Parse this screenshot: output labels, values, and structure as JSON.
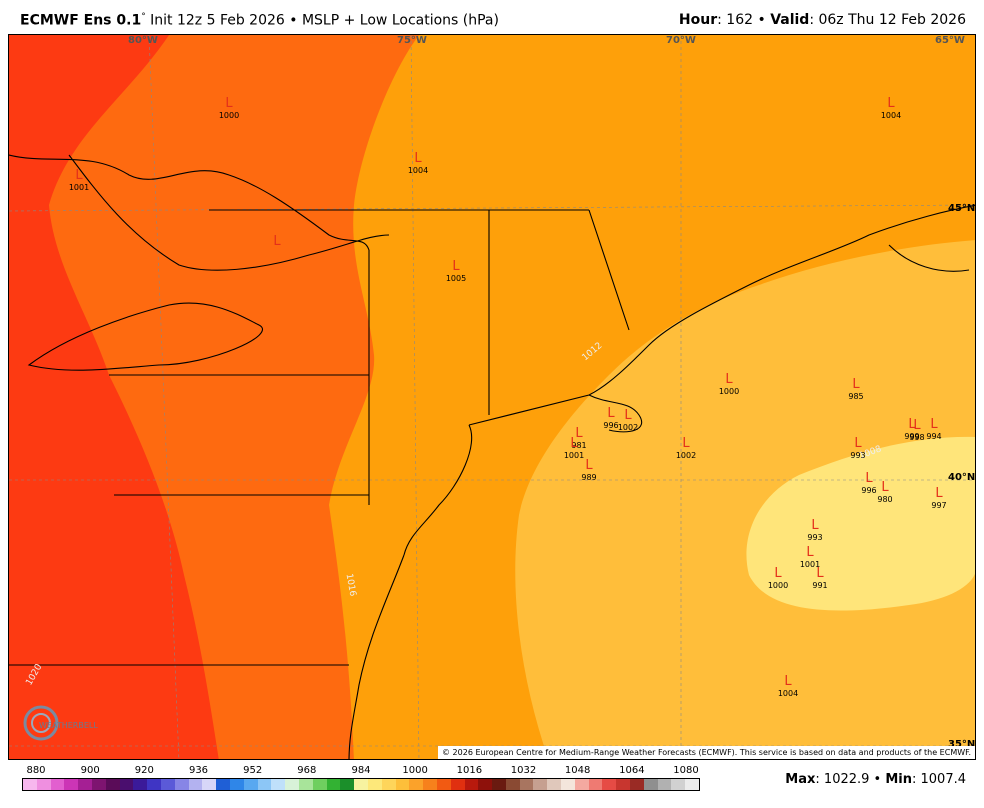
{
  "header": {
    "model": "ECMWF Ens 0.1",
    "degree": "°",
    "init": " Init 12z 5 Feb 2026 • MSLP + Low Locations (hPa)",
    "hour_label": "Hour",
    "hour_value": ": 162 • ",
    "valid_label": "Valid",
    "valid_value": ": 06z Thu 12 Feb 2026"
  },
  "longitudes": [
    "80°W",
    "75°W",
    "70°W",
    "65°W"
  ],
  "latitudes": [
    "45°N",
    "40°N",
    "35°N"
  ],
  "contour_labels": [
    "1012",
    "1008",
    "1016",
    "1020"
  ],
  "lows": [
    {
      "v": "1000"
    },
    {
      "v": "1001"
    },
    {
      "v": "1004"
    },
    {
      "v": ""
    },
    {
      "v": "1005"
    },
    {
      "v": "1004"
    },
    {
      "v": "1000"
    },
    {
      "v": "985"
    },
    {
      "v": "981"
    },
    {
      "v": "996"
    },
    {
      "v": "1002"
    },
    {
      "v": "1001"
    },
    {
      "v": "989"
    },
    {
      "v": "1002"
    },
    {
      "v": "998"
    },
    {
      "v": "999"
    },
    {
      "v": "994"
    },
    {
      "v": "993"
    },
    {
      "v": "996"
    },
    {
      "v": "980"
    },
    {
      "v": "997"
    },
    {
      "v": "993"
    },
    {
      "v": "1001"
    },
    {
      "v": "1000"
    },
    {
      "v": "991"
    },
    {
      "v": "1004"
    }
  ],
  "credit": "© 2026 European Centre for Medium-Range Weather Forecasts (ECMWF). This service is based on data and products of the ECMWF.",
  "logo_text": "WEATHERBELL",
  "colorbar": {
    "ticks": [
      "880",
      "900",
      "920",
      "936",
      "952",
      "968",
      "984",
      "1000",
      "1016",
      "1032",
      "1048",
      "1064",
      "1080"
    ],
    "colors": [
      "#f7b7ee",
      "#ef8fe0",
      "#e25fcf",
      "#cc35b6",
      "#a51f94",
      "#7e1470",
      "#5a0c58",
      "#4a0e6e",
      "#3b1a9a",
      "#3f35c4",
      "#5b5ad8",
      "#8785e6",
      "#b3b2f0",
      "#d7d6f8",
      "#1f5fd6",
      "#2f86e8",
      "#58a8f0",
      "#8cc6f6",
      "#bfe0fa",
      "#d8f2d8",
      "#a8e49a",
      "#6fcf5f",
      "#33b233",
      "#1b8f2a",
      "#f7f3a0",
      "#fde87a",
      "#fed55a",
      "#fdbf3a",
      "#fba22a",
      "#f7811c",
      "#f25a12",
      "#e03010",
      "#b8190d",
      "#8e110b",
      "#6a1a10",
      "#8a4a33",
      "#a87560",
      "#c6a090",
      "#e0c8bb",
      "#f4e6dc",
      "#f4a9a0",
      "#ef7a72",
      "#e64b45",
      "#c8362f",
      "#9a2b25",
      "#8f8f8f",
      "#b1b1b1",
      "#d1d1d1",
      "#ececec"
    ]
  },
  "stats": {
    "max_label": "Max",
    "max_value": ": 1022.9 • ",
    "min_label": "Min",
    "min_value": ": 1007.4"
  },
  "fill_colors": {
    "f1020": "#fd3a12",
    "f1016": "#fe6a10",
    "f1012": "#fea00a",
    "f1008": "#ffbe3a",
    "f1004": "#ffe57a"
  }
}
